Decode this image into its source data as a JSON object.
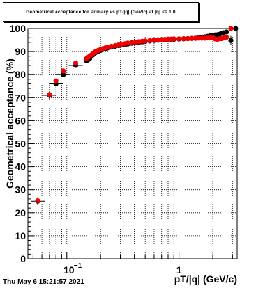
{
  "title": "Geometrical acceptance for Primary vs pT/|q| (GeV/c) at |η| <= 1.0",
  "timestamp": "Thu May  6 15:21:57 2021",
  "chart_data": {
    "type": "scatter",
    "title": "Geometrical acceptance for Primary vs pT/|q| (GeV/c) at |η| <= 1.0",
    "xlabel": "pT/|q| (GeV/c)",
    "ylabel": "Geometrical acceptance (%)",
    "xscale": "log",
    "xlim": [
      0.045,
      3.3
    ],
    "ylim": [
      0,
      100
    ],
    "grid": true,
    "y_ticks": [
      0,
      10,
      20,
      30,
      40,
      50,
      60,
      70,
      80,
      90,
      100
    ],
    "x_ticks": [
      {
        "value": 0.1,
        "base": "10",
        "exp": "−1"
      },
      {
        "value": 1,
        "base": "1",
        "exp": ""
      }
    ],
    "series": [
      {
        "marker_color": "#000000",
        "x": [
          0.055,
          0.07,
          0.08,
          0.093,
          0.12,
          0.15,
          0.155,
          0.16,
          0.165,
          0.17,
          0.175,
          0.18,
          0.19,
          0.2,
          0.21,
          0.22,
          0.23,
          0.25,
          0.27,
          0.29,
          0.31,
          0.33,
          0.35,
          0.38,
          0.41,
          0.44,
          0.47,
          0.5,
          0.55,
          0.6,
          0.65,
          0.7,
          0.75,
          0.8,
          0.85,
          0.9,
          1.0,
          1.1,
          1.2,
          1.3,
          1.4,
          1.5,
          1.6,
          1.7,
          1.8,
          1.9,
          2.0,
          2.1,
          2.2,
          2.3,
          2.4,
          2.5,
          2.65,
          2.9,
          3.2
        ],
        "y": [
          25,
          71,
          76,
          80,
          84,
          86,
          86.5,
          87,
          88,
          88.5,
          89,
          89.5,
          90,
          90.5,
          91,
          91.2,
          91.5,
          92,
          92.3,
          92.6,
          92.9,
          93,
          93.3,
          93.6,
          93.8,
          94,
          94.2,
          94.4,
          94.6,
          94.8,
          94.9,
          95,
          95.1,
          95.2,
          95.3,
          95.3,
          95.4,
          95.5,
          95.6,
          95.7,
          95.8,
          96,
          96.2,
          96.4,
          96.6,
          96.9,
          97,
          97.2,
          97.3,
          97.5,
          98,
          98.2,
          98.5,
          94.8,
          100
        ],
        "y_err": [
          1.5,
          1.5,
          1.2,
          1.2,
          1,
          1,
          1,
          1,
          1,
          1,
          1,
          1,
          1,
          1,
          1,
          1,
          1,
          1,
          1,
          1,
          1,
          1,
          1,
          1,
          1,
          1,
          1,
          1,
          1,
          1,
          1,
          1,
          1,
          1,
          1,
          1,
          1,
          1,
          1,
          1,
          1,
          1,
          1,
          1,
          1,
          1,
          1,
          1,
          1,
          1,
          1,
          1,
          1,
          2,
          0.5
        ]
      },
      {
        "marker_color": "#ee0000",
        "x": [
          0.055,
          0.07,
          0.08,
          0.093,
          0.12,
          0.15,
          0.155,
          0.16,
          0.165,
          0.17,
          0.175,
          0.18,
          0.19,
          0.2,
          0.21,
          0.22,
          0.23,
          0.25,
          0.27,
          0.29,
          0.31,
          0.33,
          0.35,
          0.38,
          0.41,
          0.44,
          0.47,
          0.5,
          0.55,
          0.6,
          0.65,
          0.7,
          0.75,
          0.8,
          0.85,
          0.9,
          1.0,
          1.1,
          1.2,
          1.3,
          1.4,
          1.5,
          1.6,
          1.7,
          1.8,
          1.9,
          2.0,
          2.1,
          2.2,
          2.3,
          2.4,
          2.5,
          2.65,
          2.9
        ],
        "y": [
          25.2,
          71.3,
          77.3,
          81.6,
          85,
          87,
          87.5,
          88,
          88.5,
          89,
          89.5,
          90,
          90.5,
          91,
          91.3,
          91.6,
          91.9,
          92.3,
          92.6,
          92.9,
          93.2,
          93.4,
          93.7,
          93.9,
          94.1,
          94.3,
          94.5,
          94.6,
          94.8,
          95,
          95.1,
          95.2,
          95.3,
          95.4,
          95.4,
          95.5,
          95.5,
          95.6,
          95.6,
          95.7,
          95.7,
          95.8,
          95.8,
          95.8,
          95.9,
          95.9,
          96,
          95.5,
          95.3,
          95.6,
          95.6,
          96,
          96.2,
          100
        ],
        "y_err": [
          1.5,
          1.2,
          1,
          1,
          1,
          1,
          1,
          1,
          1,
          1,
          1,
          1,
          1,
          1,
          1,
          1,
          1,
          1,
          1,
          1,
          1,
          1,
          1,
          1,
          1,
          1,
          1,
          1,
          1,
          1,
          1,
          1,
          1,
          1,
          1,
          1,
          1,
          1,
          1,
          1,
          1,
          1,
          1,
          1,
          1,
          1,
          1,
          1,
          1,
          1,
          1,
          1,
          1,
          0.5
        ]
      }
    ]
  }
}
